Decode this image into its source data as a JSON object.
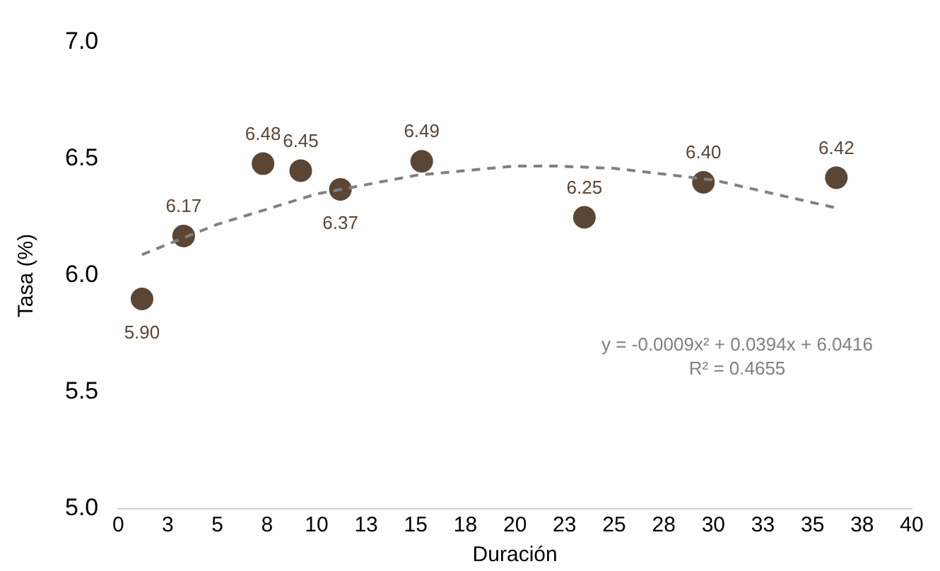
{
  "chart_data": {
    "type": "scatter",
    "xlabel": "Duración",
    "ylabel": "Tasa (%)",
    "xlim": [
      0,
      40
    ],
    "xticks": [
      0,
      {
        "value": 2.5,
        "label": "3"
      },
      5,
      {
        "value": 7.5,
        "label": "8"
      },
      10,
      {
        "value": 12.5,
        "label": "13"
      },
      15,
      {
        "value": 17.5,
        "label": "18"
      },
      20,
      {
        "value": 22.5,
        "label": "23"
      },
      25,
      {
        "value": 27.5,
        "label": "28"
      },
      30,
      {
        "value": 32.5,
        "label": "33"
      },
      35,
      {
        "value": 37.5,
        "label": "38"
      },
      40
    ],
    "ylim": [
      5,
      7
    ],
    "yticks": [
      {
        "value": 5,
        "label": "5.0"
      },
      {
        "value": 5.5,
        "label": "5.5"
      },
      {
        "value": 6,
        "label": "6.0"
      },
      {
        "value": 6.5,
        "label": "6.5"
      },
      {
        "value": 7,
        "label": "7.0"
      }
    ],
    "grid": false,
    "legend": false,
    "marker": "circle",
    "series": [
      {
        "color": "#5b4636",
        "x": [
          1.2,
          3.3,
          7.3,
          9.2,
          11.2,
          15.3,
          23.5,
          29.5,
          36.2
        ],
        "values": [
          5.9,
          6.17,
          6.48,
          6.45,
          6.37,
          6.49,
          6.25,
          6.4,
          6.42
        ],
        "value_labels": [
          "5.90",
          "6.17",
          "6.48",
          "6.45",
          "6.37",
          "6.49",
          "6.25",
          "6.40",
          "6.42"
        ]
      },
      {
        "type": "line",
        "color": "#808080",
        "line_style": "dashed",
        "marker": "none",
        "x": [
          1.2,
          5,
          10,
          15,
          20,
          22,
          25,
          30,
          36.2
        ],
        "values": [
          6.09,
          6.22,
          6.35,
          6.43,
          6.47,
          6.47,
          6.46,
          6.41,
          6.29
        ]
      }
    ],
    "annotations": [
      "y = -0.0009x² + 0.0394x + 6.0416",
      "R² = 0.4655"
    ]
  }
}
